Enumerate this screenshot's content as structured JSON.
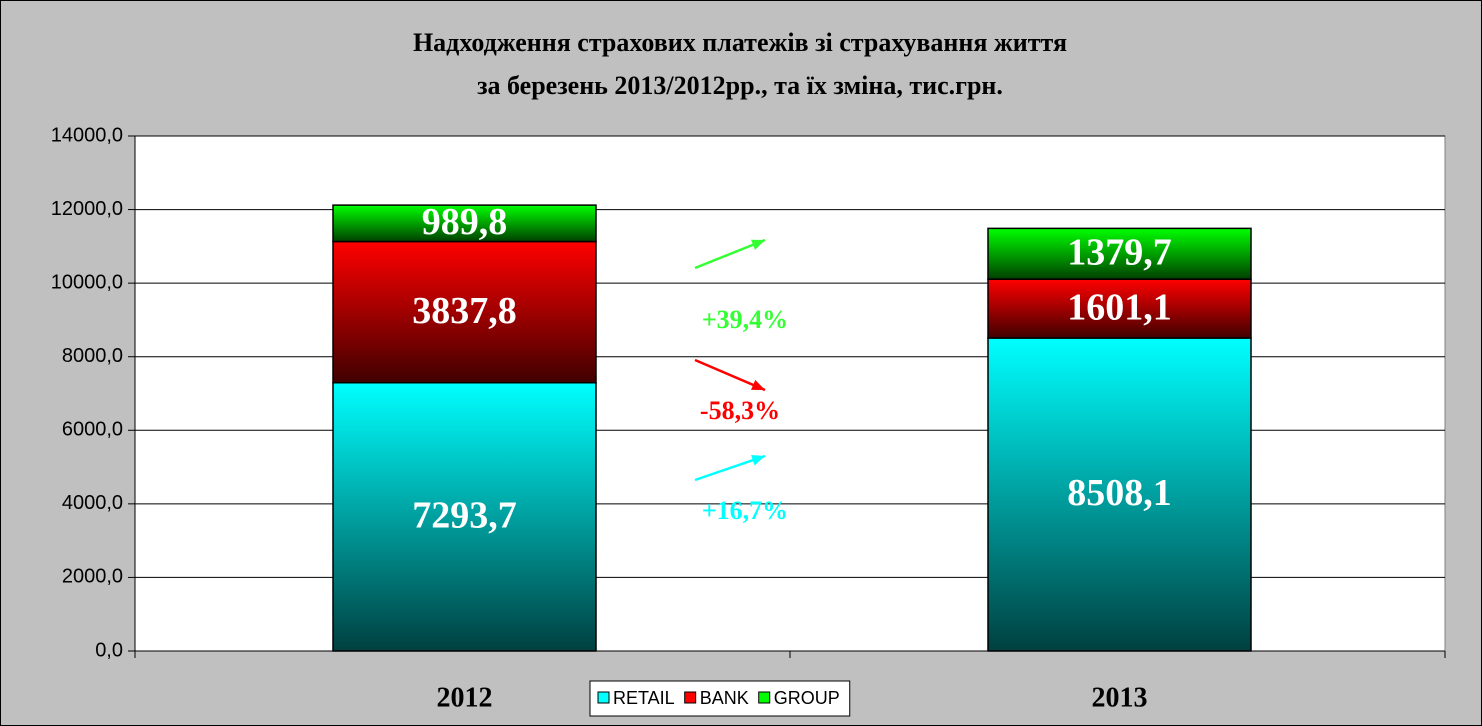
{
  "chart_data": {
    "type": "stacked_bar",
    "title": [
      "Надходження страхових платежів зі страхування життя",
      "за березень 2013/2012рр., та їх зміна, тис.грн."
    ],
    "categories": [
      "2012",
      "2013"
    ],
    "series": [
      {
        "name": "RETAIL",
        "color": "#00ffff",
        "values": [
          7293.7,
          8508.1
        ],
        "value_labels": [
          "7293,7",
          "8508,1"
        ]
      },
      {
        "name": "BANK",
        "color": "#ff0000",
        "values": [
          3837.8,
          1601.1
        ],
        "value_labels": [
          "3837,8",
          "1601,1"
        ]
      },
      {
        "name": "GROUP",
        "color": "#00ff00",
        "values": [
          989.8,
          1379.7
        ],
        "value_labels": [
          "989,8",
          "1379,7"
        ]
      }
    ],
    "ylim": [
      0,
      14000
    ],
    "yticks": [
      {
        "value": 0,
        "label": "0,0"
      },
      {
        "value": 2000,
        "label": "2000,0"
      },
      {
        "value": 4000,
        "label": "4000,0"
      },
      {
        "value": 6000,
        "label": "6000,0"
      },
      {
        "value": 8000,
        "label": "8000,0"
      },
      {
        "value": 10000,
        "label": "10000,0"
      },
      {
        "value": 12000,
        "label": "12000,0"
      },
      {
        "value": 14000,
        "label": "14000,0"
      }
    ],
    "grid": true,
    "legend": "bottom",
    "annotations": [
      {
        "text": "+39,4%",
        "color": "#33ff33"
      },
      {
        "text": "-58,3%",
        "color": "#ff0000"
      },
      {
        "text": "+16,7%",
        "color": "#00ffff"
      }
    ]
  }
}
